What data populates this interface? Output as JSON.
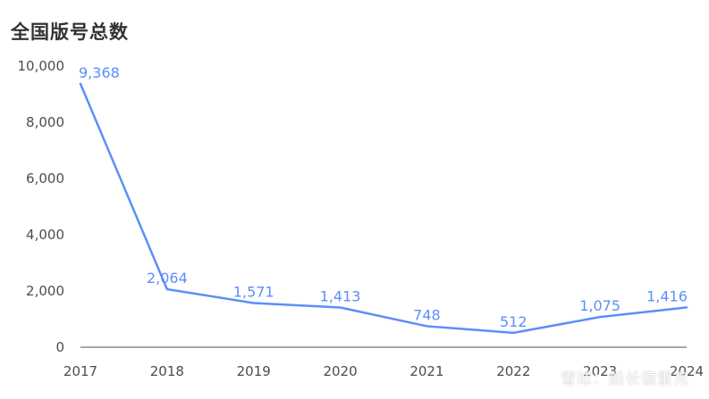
{
  "chart_data": {
    "type": "line",
    "title": "全国版号总数",
    "xlabel": "",
    "ylabel": "",
    "categories": [
      "2017",
      "2018",
      "2019",
      "2020",
      "2021",
      "2022",
      "2023",
      "2024"
    ],
    "series": [
      {
        "values": [
          9368,
          2064,
          1571,
          1413,
          748,
          512,
          1075,
          1416
        ],
        "labels": [
          "9,368",
          "2,064",
          "1,571",
          "1,413",
          "748",
          "512",
          "1,075",
          "1,416"
        ]
      }
    ],
    "ylim": [
      0,
      10000
    ],
    "yticks": [
      0,
      2000,
      4000,
      6000,
      8000,
      10000
    ],
    "ytick_labels": [
      "0",
      "2,000",
      "4,000",
      "6,000",
      "8,000",
      "10,000"
    ],
    "grid": false,
    "legend": "none",
    "colors": {
      "line": "#5b8ff9",
      "label": "#5b8ff9",
      "axis": "#4d4d4d"
    }
  },
  "watermark": "雪球：船长德雷克"
}
